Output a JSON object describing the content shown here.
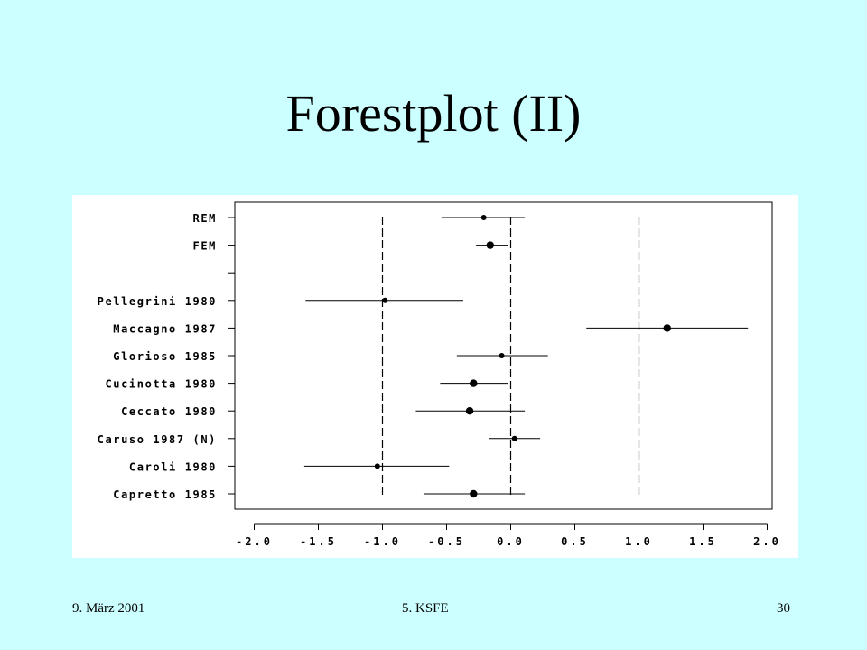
{
  "slide": {
    "title": "Forestplot (II)",
    "footer_date": "9. März 2001",
    "footer_event": "5. KSFE",
    "footer_page": "30"
  },
  "chart_data": {
    "type": "scatter",
    "title": "",
    "xlabel": "",
    "ylabel": "",
    "xlim": [
      -2.1,
      2.1
    ],
    "x_ticks": [
      -2.0,
      -1.5,
      -1.0,
      -0.5,
      0.0,
      0.5,
      1.0,
      1.5,
      2.0
    ],
    "x_tick_labels": [
      "-2.0",
      "-1.5",
      "-1.0",
      "-0.5",
      "0.0",
      "0.5",
      "1.0",
      "1.5",
      "2.0"
    ],
    "reference_lines": [
      -1.0,
      0.0,
      1.0
    ],
    "grid": false,
    "rows": [
      {
        "label": "REM",
        "estimate": -0.21,
        "lower": -0.54,
        "upper": 0.11,
        "marker": "small"
      },
      {
        "label": "FEM",
        "estimate": -0.16,
        "lower": -0.27,
        "upper": -0.02,
        "marker": "large"
      },
      {
        "label": "",
        "estimate": null,
        "lower": null,
        "upper": null,
        "marker": "none"
      },
      {
        "label": "Pellegrini 1980",
        "estimate": -0.98,
        "lower": -1.6,
        "upper": -0.37,
        "marker": "small"
      },
      {
        "label": "Maccagno 1987",
        "estimate": 1.22,
        "lower": 0.59,
        "upper": 1.85,
        "marker": "large"
      },
      {
        "label": "Glorioso 1985",
        "estimate": -0.07,
        "lower": -0.42,
        "upper": 0.29,
        "marker": "small"
      },
      {
        "label": "Cucinotta 1980",
        "estimate": -0.29,
        "lower": -0.55,
        "upper": -0.02,
        "marker": "large"
      },
      {
        "label": "Ceccato 1980",
        "estimate": -0.32,
        "lower": -0.74,
        "upper": 0.11,
        "marker": "large"
      },
      {
        "label": "Caruso 1987 (N)",
        "estimate": 0.03,
        "lower": -0.17,
        "upper": 0.23,
        "marker": "small"
      },
      {
        "label": "Caroli 1980",
        "estimate": -1.04,
        "lower": -1.61,
        "upper": -0.48,
        "marker": "small"
      },
      {
        "label": "Capretto 1985",
        "estimate": -0.29,
        "lower": -0.68,
        "upper": 0.11,
        "marker": "large"
      }
    ]
  }
}
